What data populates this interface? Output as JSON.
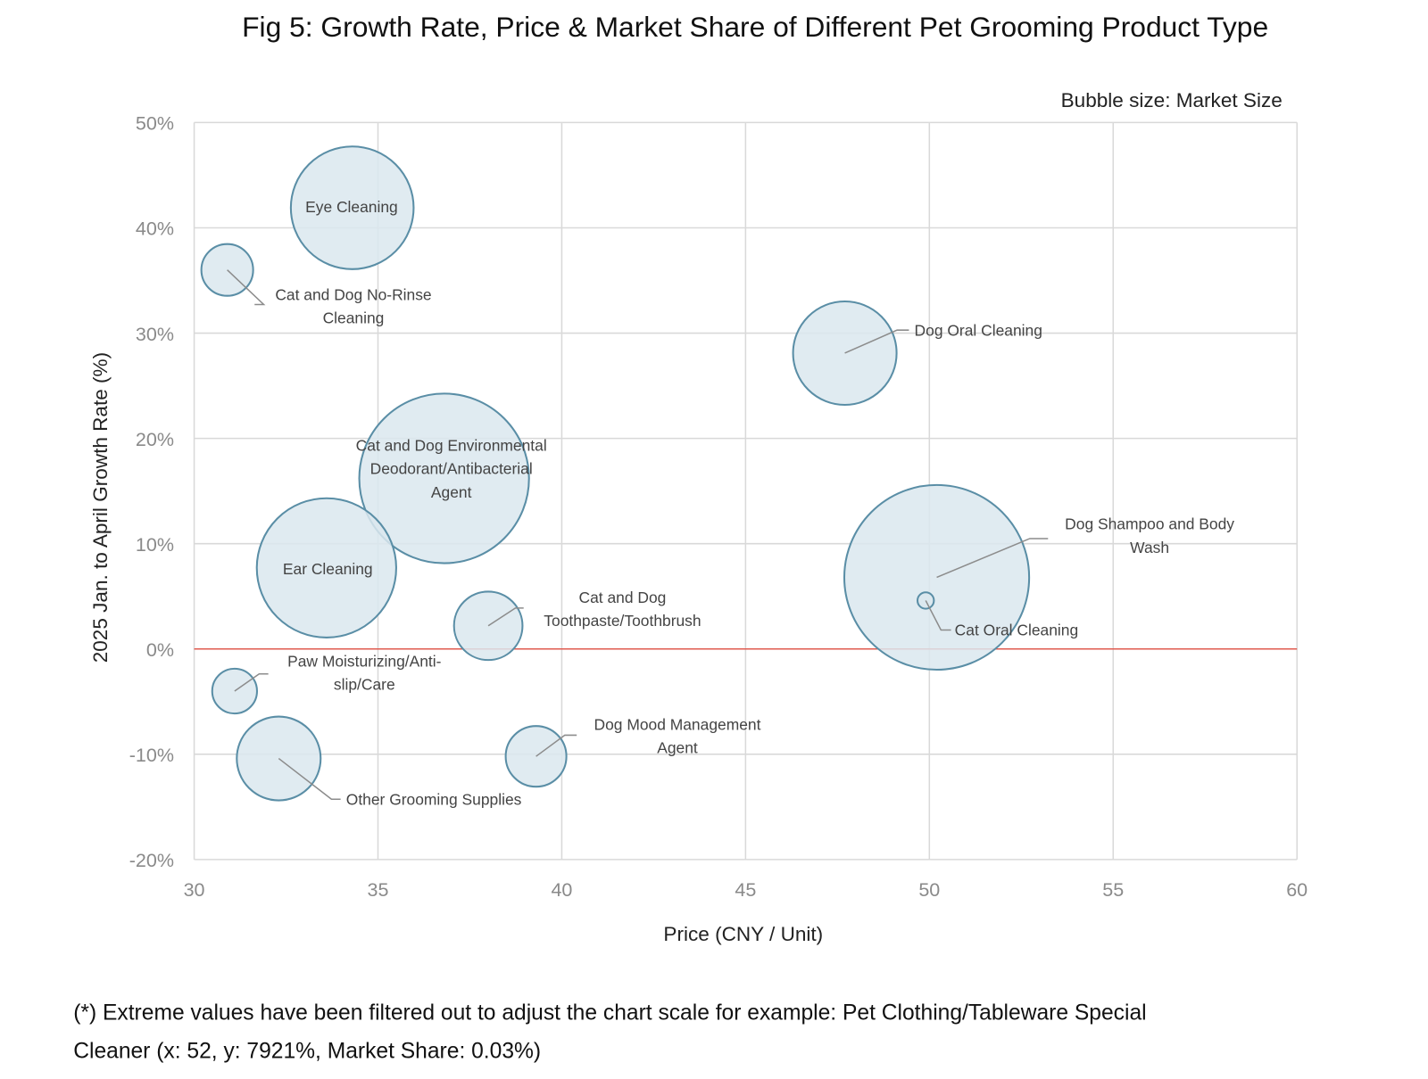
{
  "chart_data": {
    "type": "scatter",
    "subtype": "bubble",
    "title": "Fig 5: Growth Rate, Price & Market Share of Different Pet Grooming Product Type",
    "size_note": "Bubble size: Market Size",
    "xlabel": "Price (CNY / Unit)",
    "ylabel": "2025 Jan. to April Growth Rate (%)",
    "xlim": [
      30,
      60
    ],
    "ylim": [
      -20,
      50
    ],
    "x_ticks": [
      "30",
      "35",
      "40",
      "45",
      "50",
      "55",
      "60"
    ],
    "y_ticks": [
      "50%",
      "40%",
      "30%",
      "20%",
      "10%",
      "0%",
      "-10%",
      "-20%"
    ],
    "grid": true,
    "zero_line_color": "#e05a4f",
    "bubble_fill": "#dbe7ef",
    "bubble_stroke": "#5a8ea6",
    "points": [
      {
        "label_lines": [
          "Eye Cleaning"
        ],
        "x": 34.3,
        "y": 41.9,
        "size": 45
      },
      {
        "label_lines": [
          "Cat and Dog No-Rinse",
          "Cleaning"
        ],
        "x": 30.9,
        "y": 36.0,
        "size": 8
      },
      {
        "label_lines": [
          "Dog Oral Cleaning"
        ],
        "x": 47.7,
        "y": 28.1,
        "size": 32
      },
      {
        "label_lines": [
          "Cat and Dog Environmental",
          "Deodorant/Antibacterial",
          "Agent"
        ],
        "x": 36.8,
        "y": 16.2,
        "size": 86
      },
      {
        "label_lines": [
          "Ear Cleaning"
        ],
        "x": 33.6,
        "y": 7.7,
        "size": 58
      },
      {
        "label_lines": [
          "Dog Shampoo and Body",
          "Wash"
        ],
        "x": 50.2,
        "y": 6.8,
        "size": 102
      },
      {
        "label_lines": [
          "Cat Oral Cleaning"
        ],
        "x": 49.9,
        "y": 4.6,
        "size": 0.8
      },
      {
        "label_lines": [
          "Cat and Dog",
          "Toothpaste/Toothbrush"
        ],
        "x": 38.0,
        "y": 2.2,
        "size": 14
      },
      {
        "label_lines": [
          "Paw Moisturizing/Anti-",
          "slip/Care"
        ],
        "x": 31.1,
        "y": -4.0,
        "size": 6
      },
      {
        "label_lines": [
          "Other Grooming Supplies"
        ],
        "x": 32.3,
        "y": -10.4,
        "size": 21
      },
      {
        "label_lines": [
          "Dog Mood Management",
          "Agent"
        ],
        "x": 39.3,
        "y": -10.2,
        "size": 11
      }
    ],
    "footnote_lines": [
      "(*) Extreme values have been filtered out to adjust the chart scale for example: Pet Clothing/Tableware Special",
      "Cleaner (x: 52, y: 7921%, Market Share: 0.03%)"
    ]
  }
}
